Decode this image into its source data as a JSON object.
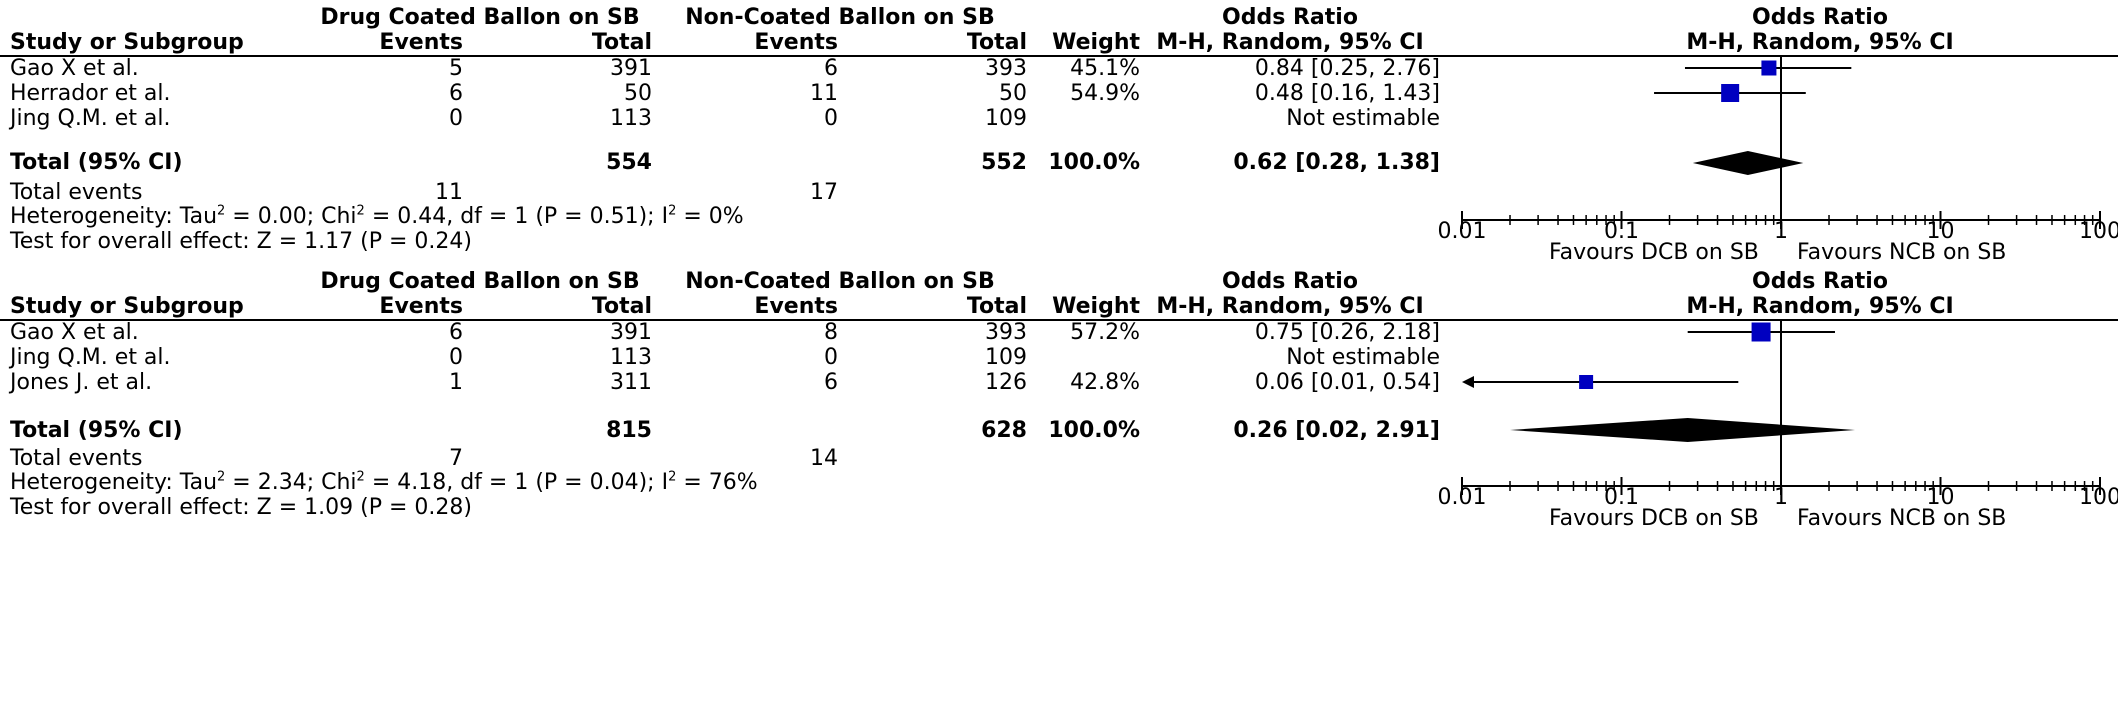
{
  "header": {
    "group1": "Drug Coated Ballon on SB",
    "group2": "Non-Coated Ballon on SB",
    "col_study": "Study or Subgroup",
    "col_events": "Events",
    "col_total": "Total",
    "col_weight": "Weight",
    "or_title": "Odds Ratio",
    "or_method": "M-H, Random, 95% CI",
    "plot_title": "Odds Ratio",
    "plot_method": "M-H, Random, 95% CI"
  },
  "panels": [
    {
      "studies": [
        {
          "name": "Gao X et al.",
          "e1": "5",
          "n1": "391",
          "e2": "6",
          "n2": "393",
          "weight": "45.1%",
          "ci_text": "0.84 [0.25, 2.76]"
        },
        {
          "name": "Herrador et al.",
          "e1": "6",
          "n1": "50",
          "e2": "11",
          "n2": "50",
          "weight": "54.9%",
          "ci_text": "0.48 [0.16, 1.43]"
        },
        {
          "name": "Jing Q.M. et al.",
          "e1": "0",
          "n1": "113",
          "e2": "0",
          "n2": "109",
          "weight": "",
          "ci_text": "Not estimable"
        }
      ],
      "total": {
        "label": "Total (95% CI)",
        "n1": "554",
        "n2": "552",
        "weight": "100.0%",
        "ci_text": "0.62 [0.28, 1.38]"
      },
      "total_events": {
        "label": "Total events",
        "e1": "11",
        "e2": "17"
      },
      "heterogeneity": {
        "prefix": "Heterogeneity: Tau",
        "mid": " = 0.00; Chi",
        "mid2": " = 0.44, df = 1 (P = 0.51); I",
        "end": " = 0%"
      },
      "overall": "Test for overall effect: Z = 1.17 (P = 0.24)"
    },
    {
      "studies": [
        {
          "name": "Gao X et al.",
          "e1": "6",
          "n1": "391",
          "e2": "8",
          "n2": "393",
          "weight": "57.2%",
          "ci_text": "0.75 [0.26, 2.18]"
        },
        {
          "name": "Jing Q.M. et al.",
          "e1": "0",
          "n1": "113",
          "e2": "0",
          "n2": "109",
          "weight": "",
          "ci_text": "Not estimable"
        },
        {
          "name": "Jones J. et al.",
          "e1": "1",
          "n1": "311",
          "e2": "6",
          "n2": "126",
          "weight": "42.8%",
          "ci_text": "0.06 [0.01, 0.54]"
        }
      ],
      "total": {
        "label": "Total (95% CI)",
        "n1": "815",
        "n2": "628",
        "weight": "100.0%",
        "ci_text": "0.26 [0.02, 2.91]"
      },
      "total_events": {
        "label": "Total events",
        "e1": "7",
        "e2": "14"
      },
      "heterogeneity": {
        "prefix": "Heterogeneity: Tau",
        "mid": " = 2.34; Chi",
        "mid2": " = 4.18, df = 1 (P = 0.04); I",
        "end": " = 76%"
      },
      "overall": "Test for overall effect: Z = 1.09 (P = 0.28)"
    }
  ],
  "axis": {
    "ticks": [
      "0.01",
      "0.1",
      "1",
      "10",
      "100"
    ],
    "favours_left": "Favours DCB on SB",
    "favours_right": "Favours NCB on SB"
  },
  "chart_data": [
    {
      "type": "scatter",
      "xscale": "log",
      "xlim": [
        0.01,
        100
      ],
      "marker_color": "#0000c0",
      "series": [
        {
          "values": [
            {
              "y": "Gao X et al.",
              "or": 0.84,
              "lo": 0.25,
              "hi": 2.76,
              "weight": 45.1
            },
            {
              "y": "Herrador et al.",
              "or": 0.48,
              "lo": 0.16,
              "hi": 1.43,
              "weight": 54.9
            }
          ]
        }
      ],
      "pooled": {
        "or": 0.62,
        "lo": 0.28,
        "hi": 1.38
      }
    },
    {
      "type": "scatter",
      "xscale": "log",
      "xlim": [
        0.01,
        100
      ],
      "marker_color": "#0000c0",
      "series": [
        {
          "values": [
            {
              "y": "Gao X et al.",
              "or": 0.75,
              "lo": 0.26,
              "hi": 2.18,
              "weight": 57.2
            },
            {
              "y": "Jones J. et al.",
              "or": 0.06,
              "lo": 0.01,
              "hi": 0.54,
              "weight": 42.8
            }
          ]
        }
      ],
      "pooled": {
        "or": 0.26,
        "lo": 0.02,
        "hi": 2.91
      }
    }
  ]
}
